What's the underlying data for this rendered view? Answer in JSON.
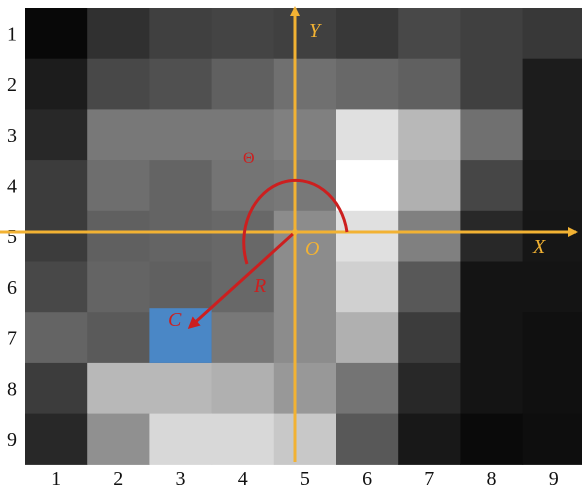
{
  "figure": {
    "row_labels": [
      "1",
      "2",
      "3",
      "4",
      "5",
      "6",
      "7",
      "8",
      "9"
    ],
    "col_labels": [
      "1",
      "2",
      "3",
      "4",
      "5",
      "6",
      "7",
      "8",
      "9"
    ],
    "grid_gray_values": [
      [
        8,
        48,
        64,
        68,
        64,
        56,
        72,
        64,
        56
      ],
      [
        28,
        72,
        80,
        96,
        112,
        104,
        96,
        64,
        28
      ],
      [
        40,
        120,
        120,
        120,
        128,
        224,
        184,
        112,
        28
      ],
      [
        60,
        110,
        100,
        116,
        120,
        255,
        176,
        70,
        24
      ],
      [
        60,
        96,
        100,
        104,
        140,
        224,
        128,
        40,
        22
      ],
      [
        72,
        100,
        96,
        104,
        140,
        208,
        88,
        20,
        20
      ],
      [
        100,
        90,
        90,
        120,
        140,
        176,
        60,
        20,
        16
      ],
      [
        60,
        184,
        184,
        176,
        152,
        116,
        40,
        20,
        16
      ],
      [
        40,
        144,
        216,
        216,
        200,
        88,
        24,
        10,
        14
      ]
    ],
    "highlight_cell": {
      "row": 7,
      "col": 3,
      "color": "#4a87c6"
    },
    "axes": {
      "x_label": "X",
      "y_label": "Y",
      "origin_label": "O",
      "color": "#f2b233"
    },
    "radius": {
      "label": "R",
      "color": "#cc1f1f"
    },
    "angle": {
      "label": "Θ",
      "color": "#cc1f1f"
    },
    "target": {
      "label": "C",
      "color": "#cc1f1f"
    }
  }
}
